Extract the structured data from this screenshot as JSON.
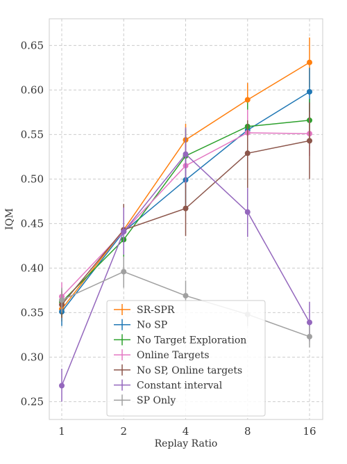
{
  "chart_data": {
    "type": "line",
    "xlabel": "Replay Ratio",
    "ylabel": "IQM",
    "x": [
      "1",
      "2",
      "4",
      "8",
      "16"
    ],
    "x_scale": "log2",
    "ylim": [
      0.23,
      0.68
    ],
    "yticks": [
      "0.25",
      "0.30",
      "0.35",
      "0.40",
      "0.45",
      "0.50",
      "0.55",
      "0.60",
      "0.65"
    ],
    "grid": true,
    "legend_position": "lower-right",
    "series": [
      {
        "name": "SR-SPR",
        "color": "#ff7f0e",
        "values": [
          0.354,
          0.443,
          0.544,
          0.589,
          0.631
        ],
        "err_low": [
          0.34,
          0.42,
          0.525,
          0.57,
          0.603
        ],
        "err_high": [
          0.369,
          0.466,
          0.562,
          0.608,
          0.659
        ]
      },
      {
        "name": "No SP",
        "color": "#1f77b4",
        "values": [
          0.351,
          0.441,
          0.499,
          0.555,
          0.598
        ],
        "err_low": [
          0.335,
          0.418,
          0.47,
          0.528,
          0.568
        ],
        "err_high": [
          0.366,
          0.462,
          0.527,
          0.58,
          0.625
        ]
      },
      {
        "name": "No Target Exploration",
        "color": "#2ca02c",
        "values": [
          0.362,
          0.432,
          0.526,
          0.559,
          0.566
        ],
        "err_low": [
          0.345,
          0.412,
          0.495,
          0.53,
          0.54
        ],
        "err_high": [
          0.376,
          0.452,
          0.556,
          0.586,
          0.59
        ]
      },
      {
        "name": "Online Targets",
        "color": "#e377c2",
        "values": [
          0.368,
          0.441,
          0.515,
          0.552,
          0.551
        ],
        "err_low": [
          0.352,
          0.42,
          0.49,
          0.525,
          0.526
        ],
        "err_high": [
          0.384,
          0.462,
          0.54,
          0.578,
          0.575
        ]
      },
      {
        "name": "No SP, Online targets",
        "color": "#8c564b",
        "values": [
          0.359,
          0.443,
          0.467,
          0.529,
          0.543
        ],
        "err_low": [
          0.344,
          0.416,
          0.436,
          0.49,
          0.5
        ],
        "err_high": [
          0.374,
          0.472,
          0.496,
          0.566,
          0.586
        ]
      },
      {
        "name": "Constant interval",
        "color": "#9467bd",
        "values": [
          0.268,
          0.441,
          0.528,
          0.463,
          0.339
        ],
        "err_low": [
          0.25,
          0.415,
          0.497,
          0.435,
          0.318
        ],
        "err_high": [
          0.287,
          0.468,
          0.558,
          0.49,
          0.362
        ]
      },
      {
        "name": "SP Only",
        "color": "#a0a0a0",
        "values": [
          0.364,
          0.396,
          0.369,
          0.348,
          0.323
        ],
        "err_low": [
          0.35,
          0.378,
          0.352,
          0.335,
          0.311
        ],
        "err_high": [
          0.378,
          0.413,
          0.386,
          0.36,
          0.335
        ]
      }
    ]
  }
}
